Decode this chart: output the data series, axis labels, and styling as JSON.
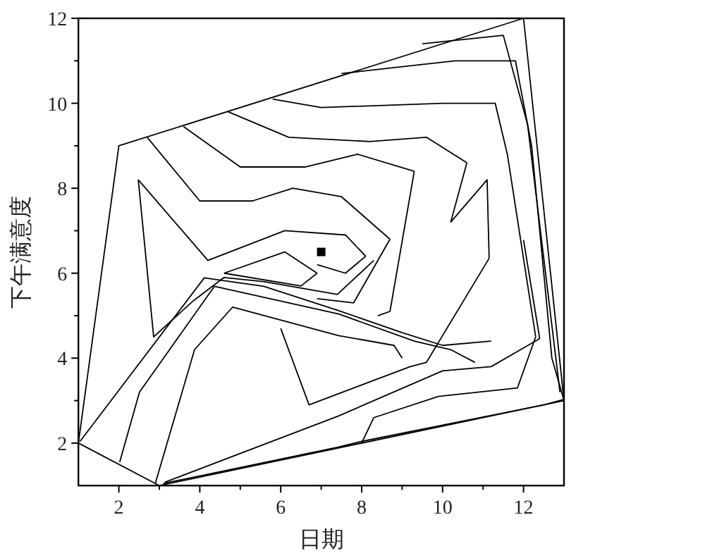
{
  "chart_data": {
    "type": "line",
    "xlabel": "日期",
    "ylabel": "下午满意度",
    "xlim": [
      1,
      13
    ],
    "ylim": [
      1,
      12
    ],
    "xticks": [
      2,
      4,
      6,
      8,
      10,
      12
    ],
    "yticks": [
      2,
      4,
      6,
      8,
      10,
      12
    ],
    "line_style": "solid",
    "series": [
      {
        "color": "#000000",
        "x": [
          1,
          2,
          12,
          13
        ],
        "values": [
          2,
          9,
          12,
          3
        ]
      },
      {
        "color": "#000000",
        "x": [
          1,
          3,
          13
        ],
        "values": [
          2,
          1,
          3
        ]
      },
      {
        "color": "#000000",
        "x": [
          4.6,
          6.1,
          6.9
        ],
        "values": [
          6.0,
          6.5,
          6.0
        ]
      },
      {
        "color": "#000000",
        "x": [
          4.6,
          6.5,
          6.9
        ],
        "values": [
          6.0,
          5.7,
          6.0
        ]
      },
      {
        "color": "#000000",
        "x": [
          2.48,
          2.86,
          3.84,
          4.6,
          5.6,
          7.4,
          8.3
        ],
        "values": [
          8.2,
          4.5,
          5.35,
          5.9,
          5.8,
          5.5,
          6.3
        ]
      },
      {
        "color": "#000000",
        "x": [
          2.48,
          4.2,
          6.1,
          7.6,
          8.1
        ],
        "values": [
          8.2,
          6.3,
          7.0,
          6.9,
          6.4
        ]
      },
      {
        "color": "#000000",
        "x": [
          6.9,
          7.6,
          8.1
        ],
        "values": [
          6.2,
          6.0,
          6.4
        ]
      },
      {
        "color": "#000000",
        "x": [
          2.7,
          4.0,
          5.3,
          6.3,
          7.5,
          8.7
        ],
        "values": [
          9.2,
          7.7,
          7.7,
          8.0,
          7.8,
          6.8
        ]
      },
      {
        "color": "#000000",
        "x": [
          6.9,
          7.8,
          8.7
        ],
        "values": [
          5.4,
          5.3,
          6.8
        ]
      },
      {
        "color": "#000000",
        "x": [
          3.6,
          5.0,
          6.6,
          7.9,
          9.3
        ],
        "values": [
          9.45,
          8.5,
          8.5,
          8.8,
          8.4
        ]
      },
      {
        "color": "#000000",
        "x": [
          8.4,
          8.7,
          9.3
        ],
        "values": [
          5.0,
          5.1,
          8.4
        ]
      },
      {
        "color": "#000000",
        "x": [
          4.7,
          6.2,
          8.2,
          9.6,
          10.6
        ],
        "values": [
          9.8,
          9.2,
          9.1,
          9.2,
          8.6
        ]
      },
      {
        "color": "#000000",
        "x": [
          10.2,
          10.6
        ],
        "values": [
          7.2,
          8.6
        ]
      },
      {
        "color": "#000000",
        "x": [
          10.2,
          11.1,
          11.15
        ],
        "values": [
          7.2,
          8.2,
          6.35
        ]
      },
      {
        "color": "#000000",
        "x": [
          6.0,
          6.7,
          9.2,
          9.6,
          11.15
        ],
        "values": [
          4.7,
          2.9,
          3.8,
          3.9,
          6.35
        ]
      },
      {
        "color": "#000000",
        "x": [
          5.8,
          7.0,
          10.0,
          11.3,
          11.6,
          12.3
        ],
        "values": [
          10.1,
          9.9,
          10.0,
          10.0,
          8.8,
          4.5
        ]
      },
      {
        "color": "#000000",
        "x": [
          8.0,
          8.3,
          9.9,
          11.85,
          12.3
        ],
        "values": [
          2.0,
          2.6,
          3.1,
          3.3,
          4.5
        ]
      },
      {
        "color": "#000000",
        "x": [
          7.5,
          10.3,
          11.8,
          12.2,
          12.7,
          13
        ],
        "values": [
          10.7,
          11.0,
          11.0,
          9.0,
          4.0,
          3.0
        ]
      },
      {
        "color": "#000000",
        "x": [
          9.5,
          11.5,
          12.1,
          12.9
        ],
        "values": [
          11.4,
          11.6,
          9.5,
          3.2
        ]
      },
      {
        "color": "#000000",
        "x": [
          1.04,
          4.11,
          5.58,
          7.43,
          9.0,
          10.0,
          11.2
        ],
        "values": [
          2.04,
          5.89,
          5.69,
          5.12,
          4.6,
          4.3,
          4.4
        ]
      },
      {
        "color": "#000000",
        "x": [
          2.02,
          2.51,
          4.36,
          7.43,
          9.3,
          10.2,
          10.8
        ],
        "values": [
          1.55,
          3.2,
          5.69,
          5.04,
          4.4,
          4.2,
          3.9
        ]
      },
      {
        "color": "#000000",
        "x": [
          2.9,
          3.87,
          4.81,
          7.43,
          8.8,
          9.0
        ],
        "values": [
          1.05,
          4.2,
          5.2,
          4.53,
          4.3,
          4.0
        ]
      },
      {
        "color": "#000000",
        "x": [
          3.14,
          7.43,
          10.0,
          11.2,
          12.4
        ],
        "values": [
          1.08,
          2.64,
          3.7,
          3.8,
          4.46
        ]
      },
      {
        "color": "#000000",
        "x": [
          12.0,
          12.4
        ],
        "values": [
          6.78,
          4.46
        ]
      },
      {
        "color": "#000000",
        "x": [
          3.1,
          7.4,
          8.0,
          12.5,
          13
        ],
        "values": [
          1.05,
          1.9,
          2.04,
          2.9,
          3.03
        ]
      },
      {
        "type": "scatter",
        "marker": "square",
        "color": "#000000",
        "x": [
          7.0
        ],
        "values": [
          6.5
        ]
      }
    ]
  }
}
